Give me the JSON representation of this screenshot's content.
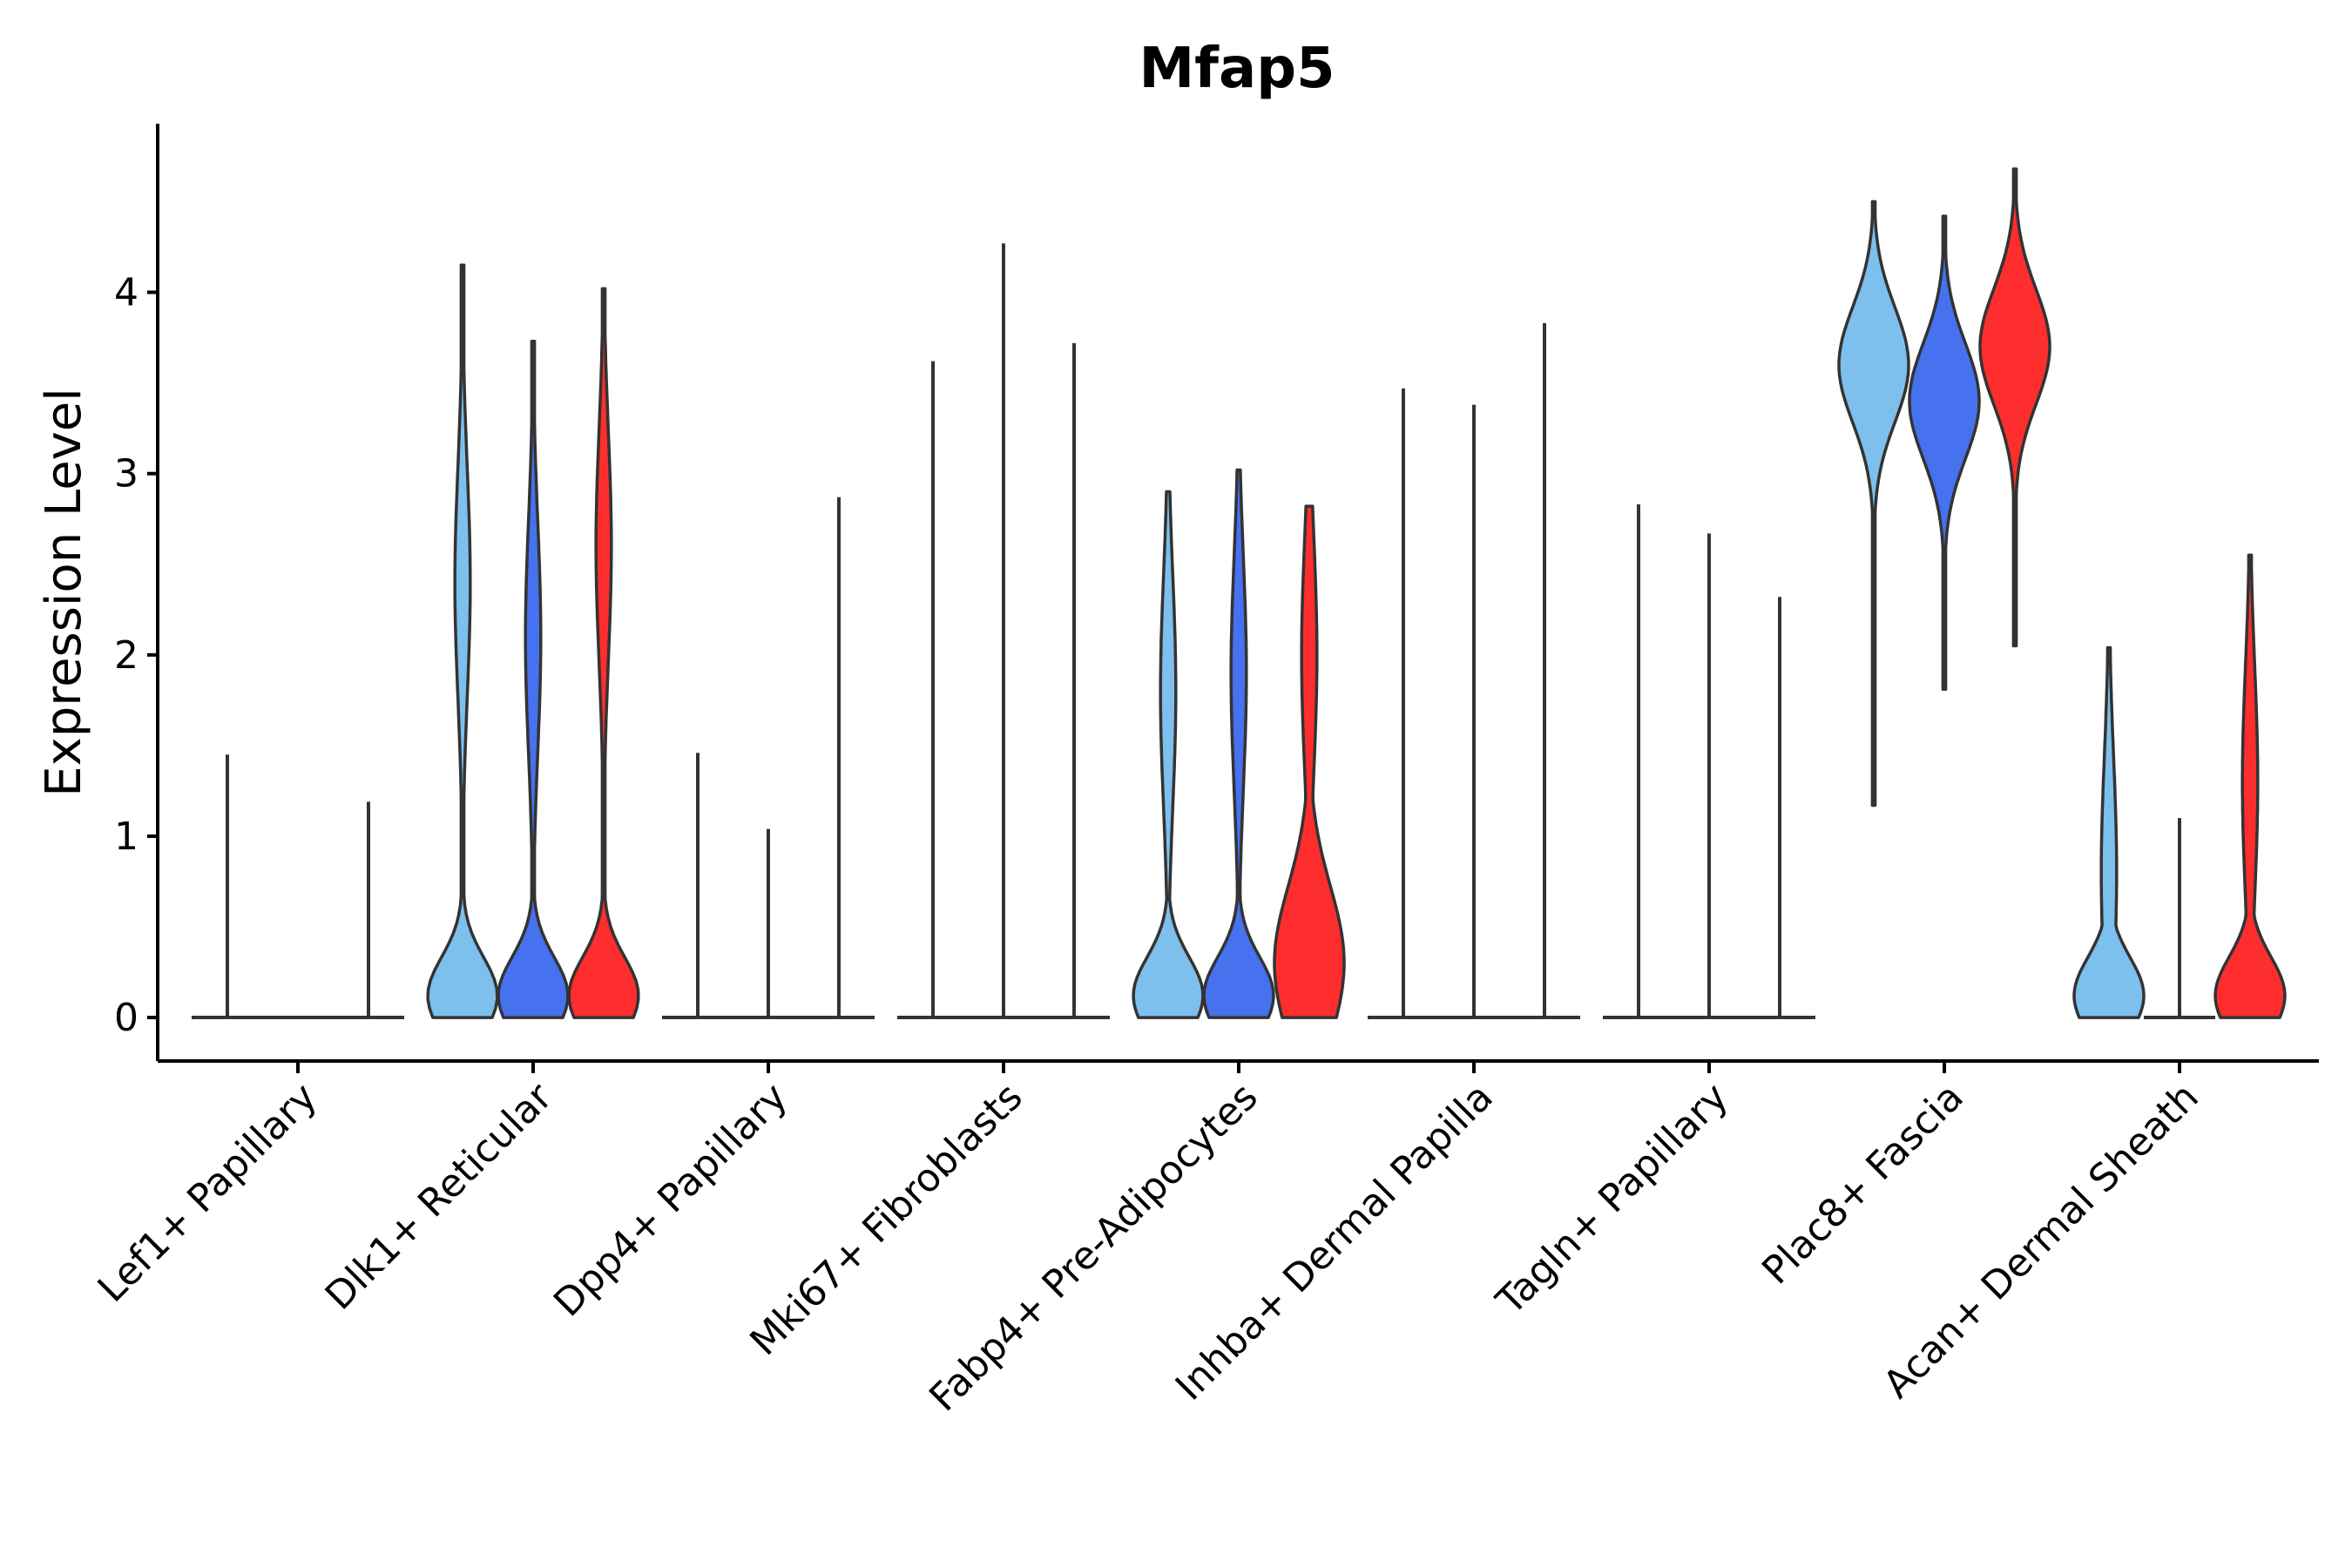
{
  "chart_data": {
    "type": "violin",
    "title": "Mfap5",
    "xlabel": "",
    "ylabel": "Expression Level",
    "ylim": [
      -0.24,
      4.93
    ],
    "yticks": [
      0,
      1,
      2,
      3,
      4
    ],
    "grid": false,
    "legend": "none",
    "series_colors": [
      "#7dbfed",
      "#4671ef",
      "#fe2e2e"
    ],
    "categories": [
      "Lef1+ Papillary",
      "Dlk1+ Reticular",
      "Dpp4+ Papillary",
      "Mki67+ Fibroblasts",
      "Fabp4+ Pre-Adipocytes",
      "Inhba+ Dermal Papilla",
      "Tagln+ Papillary",
      "Plac8+ Fascia",
      "Acan+ Dermal Sheath"
    ],
    "groups": [
      {
        "name": "Lef1+ Papillary",
        "violins": [
          {
            "min": 0,
            "max": 1.45,
            "peak": 0,
            "spread": 0.02
          },
          {
            "min": 0,
            "max": 0,
            "peak": 0,
            "spread": 0.01
          },
          {
            "min": 0,
            "max": 1.19,
            "peak": 0,
            "spread": 0.02
          }
        ]
      },
      {
        "name": "Dlk1+ Reticular",
        "violins": [
          {
            "min": 0,
            "max": 4.15,
            "peak": 0.12,
            "spread": 0.3,
            "mode2": 2.4
          },
          {
            "min": 0,
            "max": 3.73,
            "peak": 0.12,
            "spread": 0.3,
            "mode2": 2.1
          },
          {
            "min": 0,
            "max": 4.02,
            "peak": 0.12,
            "spread": 0.3,
            "mode2": 2.6
          }
        ]
      },
      {
        "name": "Dpp4+ Papillary",
        "violins": [
          {
            "min": 0,
            "max": 1.46,
            "peak": 0,
            "spread": 0.02
          },
          {
            "min": 0,
            "max": 1.04,
            "peak": 0,
            "spread": 0.02
          },
          {
            "min": 0,
            "max": 2.87,
            "peak": 0,
            "spread": 0.02
          }
        ]
      },
      {
        "name": "Mki67+ Fibroblasts",
        "violins": [
          {
            "min": 0,
            "max": 3.62,
            "peak": 0,
            "spread": 0.02
          },
          {
            "min": 0,
            "max": 4.27,
            "peak": 0,
            "spread": 0.02
          },
          {
            "min": 0,
            "max": 3.72,
            "peak": 0,
            "spread": 0.02
          }
        ]
      },
      {
        "name": "Fabp4+ Pre-Adipocytes",
        "violins": [
          {
            "min": 0,
            "max": 2.9,
            "peak": 0.12,
            "spread": 0.3,
            "mode2": 1.8
          },
          {
            "min": 0,
            "max": 3.02,
            "peak": 0.12,
            "spread": 0.3,
            "mode2": 1.9
          },
          {
            "min": 0,
            "max": 2.82,
            "peak": 0.3,
            "spread": 0.6,
            "mode2": 2.0
          }
        ]
      },
      {
        "name": "Inhba+ Dermal Papilla",
        "violins": [
          {
            "min": 0,
            "max": 3.47,
            "peak": 0,
            "spread": 0.02
          },
          {
            "min": 0,
            "max": 3.38,
            "peak": 0,
            "spread": 0.02
          },
          {
            "min": 0,
            "max": 3.83,
            "peak": 0,
            "spread": 0.02
          }
        ]
      },
      {
        "name": "Tagln+ Papillary",
        "violins": [
          {
            "min": 0,
            "max": 2.83,
            "peak": 0,
            "spread": 0.02
          },
          {
            "min": 0,
            "max": 2.67,
            "peak": 0,
            "spread": 0.02
          },
          {
            "min": 0,
            "max": 2.32,
            "peak": 0,
            "spread": 0.02
          }
        ]
      },
      {
        "name": "Plac8+ Fascia",
        "violins": [
          {
            "min": 1.17,
            "max": 4.5,
            "peak": 3.6,
            "spread": 0.45
          },
          {
            "min": 1.81,
            "max": 4.42,
            "peak": 3.4,
            "spread": 0.45
          },
          {
            "min": 2.05,
            "max": 4.68,
            "peak": 3.7,
            "spread": 0.45
          }
        ]
      },
      {
        "name": "Acan+ Dermal Sheath",
        "violins": [
          {
            "min": 0,
            "max": 2.04,
            "peak": 0.12,
            "spread": 0.3,
            "mode2": 0.8
          },
          {
            "min": 0,
            "max": 1.1,
            "peak": 0,
            "spread": 0.02
          },
          {
            "min": 0,
            "max": 2.55,
            "peak": 0.12,
            "spread": 0.3,
            "mode2": 1.3
          }
        ]
      }
    ]
  }
}
